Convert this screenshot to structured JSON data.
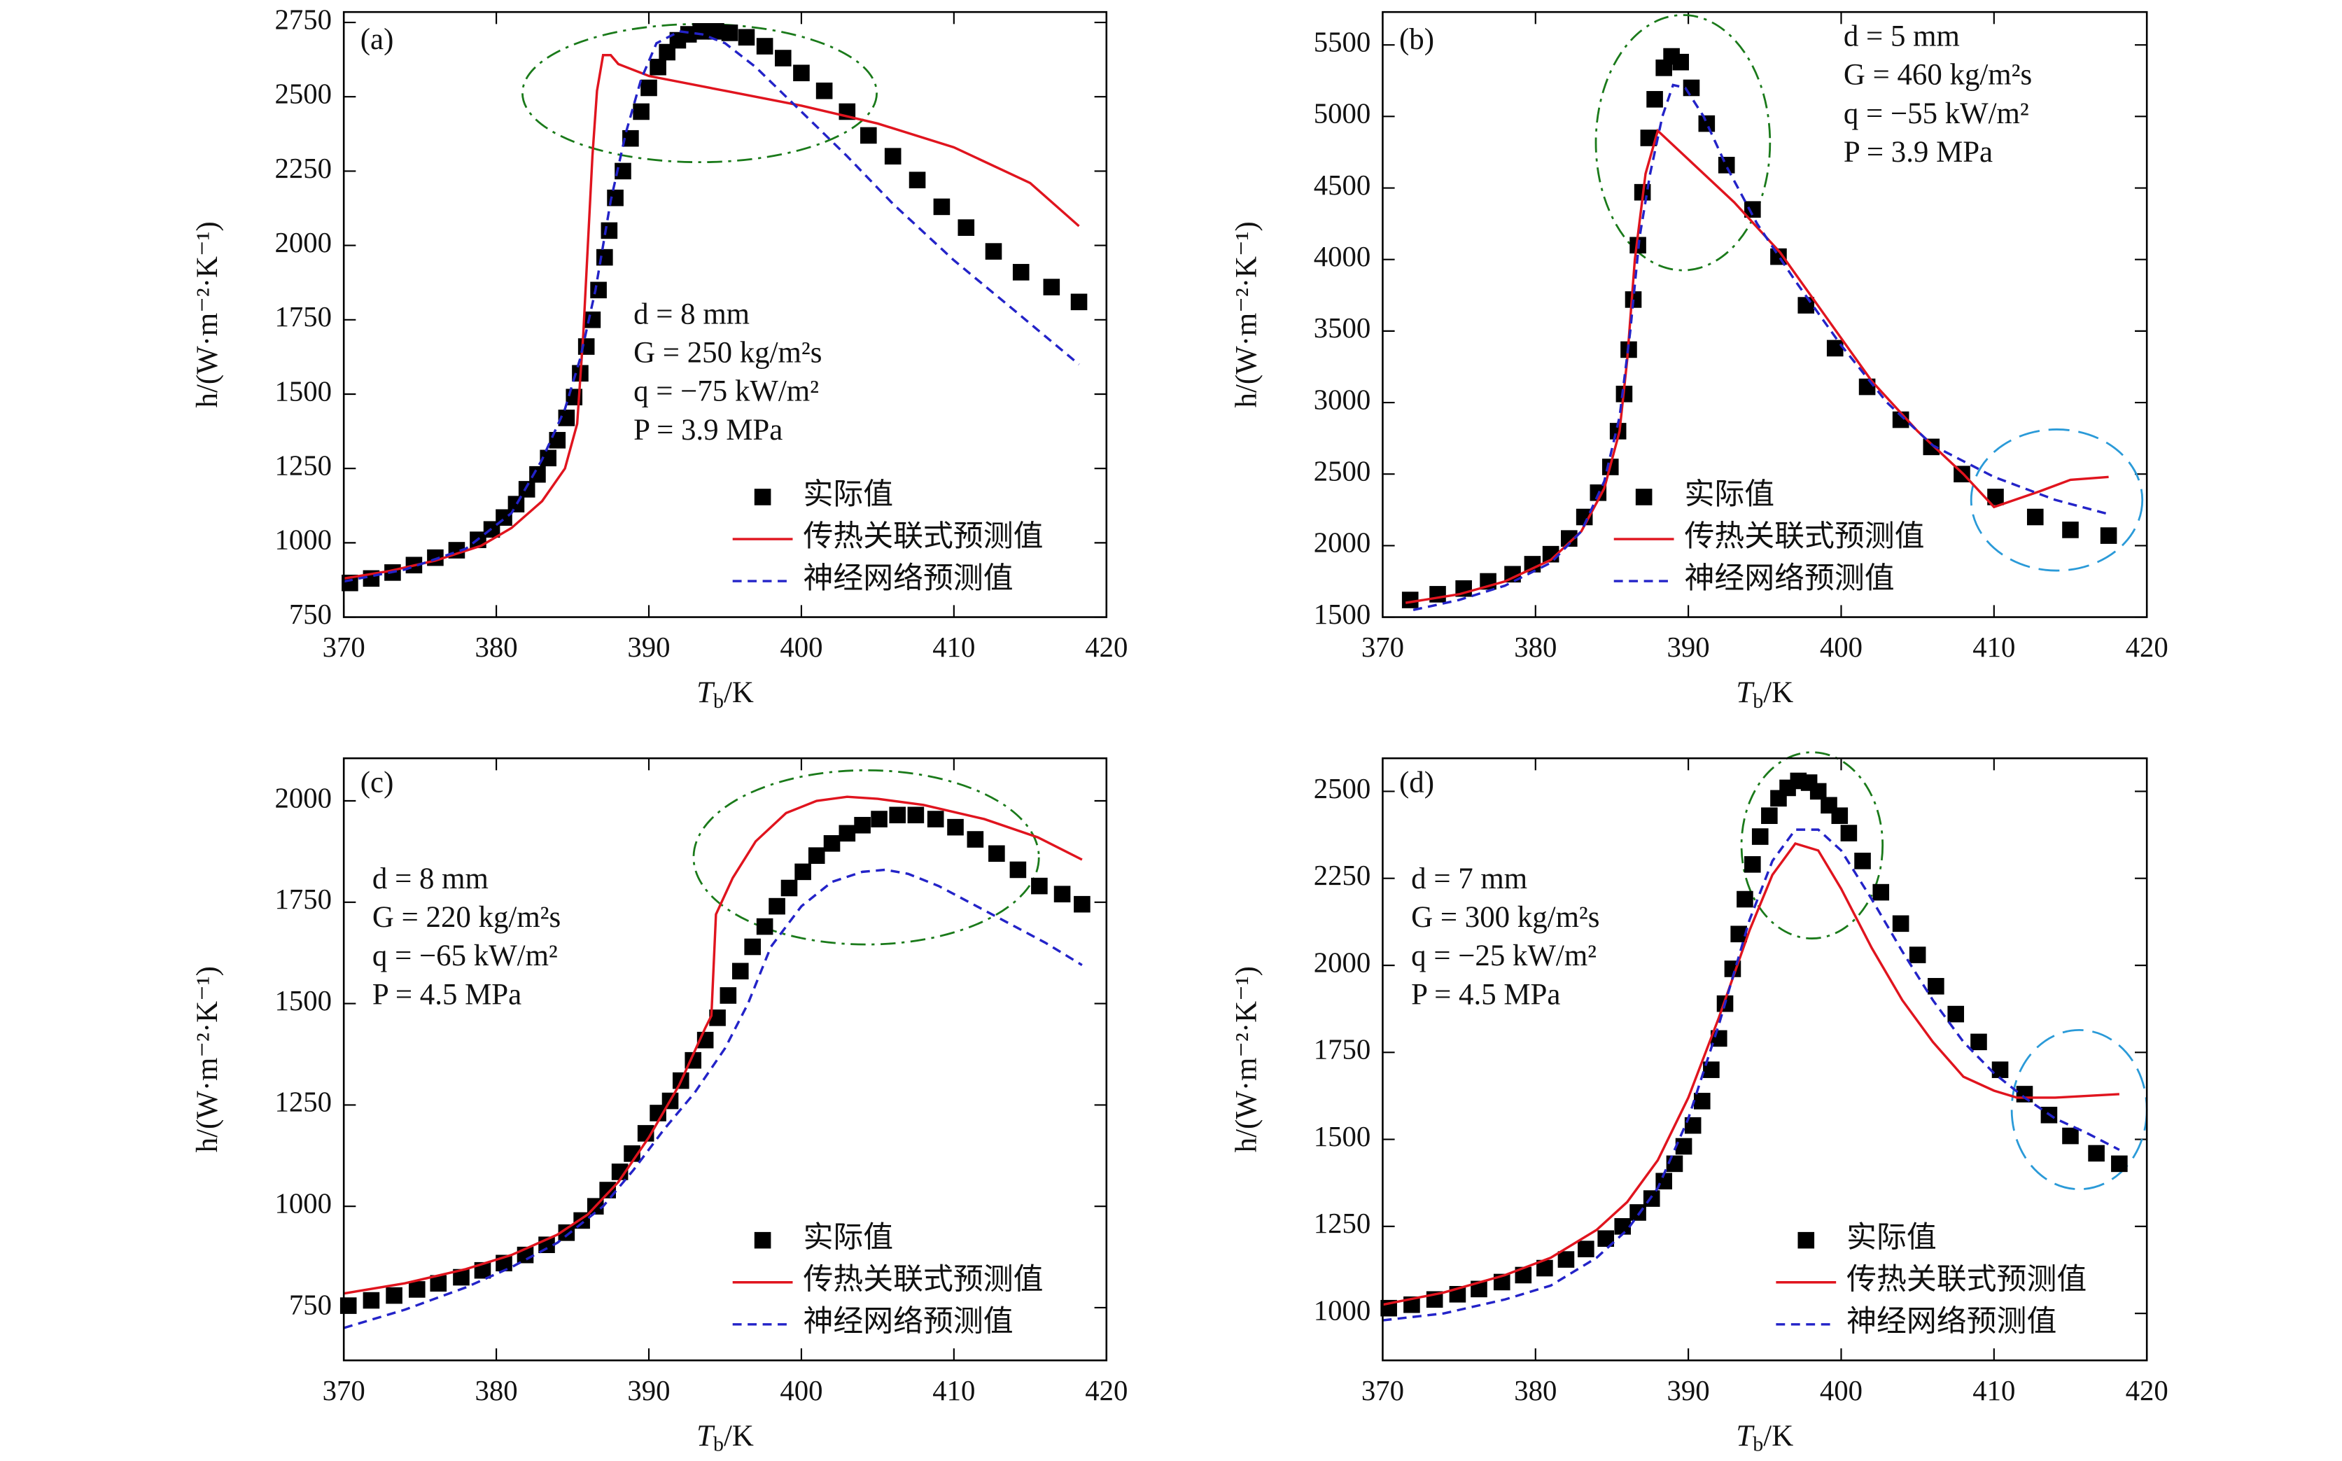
{
  "chart_data": [
    {
      "type": "line",
      "label": "(a)",
      "xlabel": [
        "T",
        "b",
        "/K"
      ],
      "ylabel": "h/(W·m⁻²·K⁻¹)",
      "xlim": [
        370,
        420
      ],
      "xticks": [
        370,
        380,
        390,
        400,
        410,
        420
      ],
      "ylim": [
        750,
        2785
      ],
      "yticks": [
        750,
        1000,
        1250,
        1500,
        1750,
        2000,
        2250,
        2500,
        2750
      ],
      "legend": "lower right",
      "annotations": [
        "d = 8 mm",
        "G = 250 kg/m²s",
        "q = −75 kW/m²",
        "P = 3.9 MPa"
      ],
      "series": [
        {
          "name": "实际值",
          "color": "#000000",
          "style": "marker",
          "x": [
            370.4,
            371.8,
            373.2,
            374.6,
            376,
            377.4,
            378.8,
            379.7,
            380.5,
            381.3,
            382,
            382.7,
            383.4,
            384,
            384.6,
            385.1,
            385.5,
            385.9,
            386.3,
            386.7,
            387.1,
            387.4,
            387.8,
            388.3,
            388.8,
            389.5,
            390,
            390.6,
            391.2,
            391.9,
            392.6,
            393.4,
            394.4,
            395.3,
            396.4,
            397.6,
            398.8,
            400,
            401.5,
            403,
            404.4,
            406,
            407.6,
            409.2,
            410.8,
            412.6,
            414.4,
            416.4,
            418.2
          ],
          "values": [
            865,
            880,
            900,
            925,
            950,
            975,
            1010,
            1045,
            1085,
            1130,
            1180,
            1230,
            1285,
            1345,
            1420,
            1490,
            1570,
            1660,
            1750,
            1850,
            1960,
            2050,
            2160,
            2250,
            2360,
            2450,
            2530,
            2600,
            2650,
            2690,
            2710,
            2720,
            2720,
            2715,
            2700,
            2670,
            2630,
            2580,
            2520,
            2450,
            2370,
            2300,
            2220,
            2130,
            2060,
            1980,
            1910,
            1860,
            1810
          ]
        },
        {
          "name": "传热关联式预测值",
          "color": "#e0141e",
          "style": "solid",
          "x": [
            370,
            373,
            376,
            379,
            381,
            383,
            384.5,
            385.3,
            385.7,
            386,
            386.3,
            386.6,
            387,
            387.5,
            388,
            390,
            395,
            400,
            405,
            410,
            415,
            418.2
          ],
          "values": [
            880,
            905,
            940,
            990,
            1050,
            1140,
            1250,
            1400,
            1700,
            2000,
            2300,
            2520,
            2640,
            2640,
            2610,
            2570,
            2520,
            2470,
            2410,
            2330,
            2210,
            2065
          ]
        },
        {
          "name": "神经网络预测值",
          "color": "#2323c8",
          "style": "dashed",
          "x": [
            370,
            374,
            378,
            381,
            383,
            384.5,
            385.5,
            386.5,
            387.5,
            388.5,
            389.5,
            390.5,
            392,
            393.5,
            395,
            397,
            400,
            403,
            406,
            410,
            414,
            418.2
          ],
          "values": [
            870,
            910,
            980,
            1100,
            1280,
            1450,
            1620,
            1850,
            2150,
            2380,
            2560,
            2680,
            2720,
            2710,
            2680,
            2600,
            2450,
            2300,
            2140,
            1950,
            1780,
            1600
          ]
        }
      ]
    },
    {
      "type": "line",
      "label": "(b)",
      "xlabel": [
        "T",
        "b",
        "/K"
      ],
      "ylabel": "h/(W·m⁻²·K⁻¹)",
      "xlim": [
        370,
        420
      ],
      "xticks": [
        370,
        380,
        390,
        400,
        410,
        420
      ],
      "ylim": [
        1500,
        5730
      ],
      "yticks": [
        1500,
        2000,
        2500,
        3000,
        3500,
        4000,
        4500,
        5000,
        5500
      ],
      "legend": "lower right",
      "annotations": [
        "d = 5 mm",
        "G = 460 kg/m²s",
        "q = −55 kW/m²",
        "P = 3.9 MPa"
      ],
      "series": [
        {
          "name": "实际值",
          "color": "#000000",
          "style": "marker",
          "x": [
            371.8,
            373.6,
            375.3,
            376.9,
            378.5,
            379.8,
            381,
            382.2,
            383.2,
            384.1,
            384.9,
            385.4,
            385.8,
            386.1,
            386.4,
            386.7,
            387,
            387.4,
            387.8,
            388.4,
            388.9,
            389.5,
            390.2,
            391.2,
            392.5,
            394.2,
            395.9,
            397.7,
            399.6,
            401.7,
            403.9,
            405.9,
            407.9,
            410.1,
            412.7,
            415,
            417.5
          ],
          "values": [
            1620,
            1660,
            1700,
            1750,
            1800,
            1870,
            1940,
            2050,
            2200,
            2370,
            2550,
            2800,
            3060,
            3370,
            3720,
            4100,
            4470,
            4850,
            5120,
            5340,
            5420,
            5380,
            5200,
            4950,
            4660,
            4350,
            4020,
            3680,
            3380,
            3110,
            2880,
            2690,
            2500,
            2340,
            2200,
            2110,
            2070
          ]
        },
        {
          "name": "传热关联式预测值",
          "color": "#e0141e",
          "style": "solid",
          "x": [
            371.5,
            375,
            378,
            381,
            383,
            384.5,
            385.5,
            386,
            386.5,
            387.2,
            388,
            390,
            393,
            396,
            399,
            402,
            405,
            408,
            410,
            413,
            415,
            417.5
          ],
          "values": [
            1600,
            1660,
            1750,
            1900,
            2100,
            2400,
            2800,
            3300,
            4000,
            4600,
            4900,
            4700,
            4400,
            4050,
            3600,
            3150,
            2800,
            2500,
            2270,
            2380,
            2460,
            2480
          ]
        },
        {
          "name": "神经网络预测值",
          "color": "#2323c8",
          "style": "dashed",
          "x": [
            372,
            375,
            378,
            381,
            383,
            384.5,
            385.5,
            386.2,
            386.8,
            387.5,
            388.3,
            389,
            389.8,
            391,
            392.5,
            394.5,
            397,
            400,
            403,
            406,
            410,
            414,
            417.5
          ],
          "values": [
            1550,
            1620,
            1720,
            1880,
            2100,
            2450,
            2900,
            3500,
            4150,
            4600,
            5000,
            5220,
            5200,
            5000,
            4650,
            4250,
            3850,
            3400,
            3000,
            2700,
            2480,
            2320,
            2220
          ]
        }
      ]
    },
    {
      "type": "line",
      "label": "(c)",
      "xlabel": [
        "T",
        "b",
        "/K"
      ],
      "ylabel": "h/(W·m⁻²·K⁻¹)",
      "xlim": [
        370,
        420
      ],
      "xticks": [
        370,
        380,
        390,
        400,
        410,
        420
      ],
      "ylim": [
        620,
        2105
      ],
      "yticks": [
        750,
        1000,
        1250,
        1500,
        1750,
        2000
      ],
      "legend": "lower right",
      "annotations": [
        "d = 8 mm",
        "G = 220 kg/m²s",
        "q = −65 kW/m²",
        "P = 4.5 MPa"
      ],
      "series": [
        {
          "name": "实际值",
          "color": "#000000",
          "style": "marker",
          "x": [
            370.3,
            371.8,
            373.3,
            374.8,
            376.2,
            377.7,
            379.1,
            380.5,
            381.9,
            383.3,
            384.6,
            385.6,
            386.5,
            387.3,
            388.1,
            388.9,
            389.8,
            390.6,
            391.4,
            392.1,
            392.9,
            393.7,
            394.5,
            395.2,
            396,
            396.8,
            397.6,
            398.4,
            399.2,
            400.1,
            401,
            402,
            403,
            404,
            405.1,
            406.3,
            407.5,
            408.8,
            410.1,
            411.4,
            412.8,
            414.2,
            415.6,
            417.1,
            418.4
          ],
          "values": [
            755,
            768,
            780,
            795,
            810,
            825,
            842,
            860,
            880,
            905,
            935,
            965,
            1000,
            1040,
            1085,
            1130,
            1180,
            1230,
            1260,
            1310,
            1360,
            1410,
            1465,
            1520,
            1580,
            1640,
            1690,
            1740,
            1785,
            1825,
            1865,
            1895,
            1920,
            1940,
            1955,
            1965,
            1965,
            1955,
            1935,
            1905,
            1870,
            1830,
            1790,
            1770,
            1745
          ]
        },
        {
          "name": "传热关联式预测值",
          "color": "#e0141e",
          "style": "solid",
          "x": [
            370,
            374,
            378,
            381,
            384,
            386,
            388,
            390,
            392,
            393.7,
            394.1,
            394.4,
            395.5,
            397,
            399,
            401,
            403,
            405,
            408,
            412,
            415.5,
            418.4
          ],
          "values": [
            785,
            810,
            845,
            880,
            930,
            980,
            1060,
            1170,
            1300,
            1440,
            1470,
            1720,
            1810,
            1900,
            1970,
            2000,
            2010,
            2005,
            1990,
            1955,
            1910,
            1855
          ]
        },
        {
          "name": "神经网络预测值",
          "color": "#2323c8",
          "style": "dashed",
          "x": [
            370,
            374,
            378,
            381,
            384,
            387,
            389,
            391,
            393,
            395,
            396.5,
            398,
            400,
            402,
            404,
            405.5,
            407,
            409,
            411,
            414,
            416,
            418.4
          ],
          "values": [
            700,
            745,
            800,
            850,
            910,
            1000,
            1090,
            1190,
            1280,
            1390,
            1500,
            1640,
            1740,
            1800,
            1825,
            1830,
            1820,
            1790,
            1750,
            1690,
            1650,
            1595
          ]
        }
      ]
    },
    {
      "type": "line",
      "label": "(d)",
      "xlabel": [
        "T",
        "b",
        "/K"
      ],
      "ylabel": "h/(W·m⁻²·K⁻¹)",
      "xlim": [
        370,
        420
      ],
      "xticks": [
        370,
        380,
        390,
        400,
        410,
        420
      ],
      "ylim": [
        865,
        2595
      ],
      "yticks": [
        1000,
        1250,
        1500,
        1750,
        2000,
        2250,
        2500
      ],
      "legend": "lower right",
      "annotations": [
        "d = 7 mm",
        "G = 300 kg/m²s",
        "q = −25 kW/m²",
        "P = 4.5 MPa"
      ],
      "series": [
        {
          "name": "实际值",
          "color": "#000000",
          "style": "marker",
          "x": [
            370.4,
            371.9,
            373.4,
            374.9,
            376.3,
            377.8,
            379.2,
            380.6,
            382,
            383.3,
            384.6,
            385.7,
            386.7,
            387.6,
            388.4,
            389.1,
            389.7,
            390.3,
            390.9,
            391.5,
            392,
            392.4,
            392.9,
            393.3,
            393.7,
            394.2,
            394.7,
            395.3,
            395.9,
            396.5,
            397.2,
            397.9,
            398.5,
            399.2,
            399.9,
            400.5,
            401.4,
            402.6,
            403.9,
            405,
            406.2,
            407.5,
            409,
            410.4,
            412,
            413.6,
            415,
            416.7,
            418.2
          ],
          "values": [
            1015,
            1025,
            1040,
            1055,
            1070,
            1090,
            1110,
            1130,
            1155,
            1185,
            1215,
            1250,
            1290,
            1330,
            1380,
            1430,
            1480,
            1540,
            1610,
            1700,
            1790,
            1890,
            1990,
            2090,
            2190,
            2290,
            2370,
            2430,
            2480,
            2510,
            2530,
            2525,
            2500,
            2460,
            2430,
            2380,
            2300,
            2210,
            2120,
            2030,
            1940,
            1860,
            1780,
            1700,
            1630,
            1570,
            1510,
            1460,
            1430
          ]
        },
        {
          "name": "传热关联式预测值",
          "color": "#e0141e",
          "style": "solid",
          "x": [
            370,
            374,
            378,
            381,
            384,
            386,
            388,
            390,
            392,
            394,
            395.5,
            397,
            398.5,
            400,
            402,
            404,
            406,
            408,
            410,
            411.5,
            414,
            418.2
          ],
          "values": [
            1025,
            1060,
            1110,
            1160,
            1240,
            1320,
            1440,
            1620,
            1850,
            2100,
            2260,
            2350,
            2330,
            2220,
            2050,
            1900,
            1780,
            1680,
            1640,
            1620,
            1620,
            1630
          ]
        },
        {
          "name": "神经网络预测值",
          "color": "#2323c8",
          "style": "dashed",
          "x": [
            370,
            374,
            378,
            381,
            384,
            386,
            388,
            390,
            392,
            394,
            395.5,
            397,
            398.5,
            400,
            402,
            404,
            406,
            408,
            410,
            412,
            414,
            416,
            418.2
          ],
          "values": [
            980,
            1000,
            1040,
            1080,
            1160,
            1240,
            1360,
            1560,
            1830,
            2130,
            2300,
            2390,
            2390,
            2330,
            2190,
            2040,
            1900,
            1780,
            1690,
            1620,
            1560,
            1520,
            1470
          ]
        }
      ]
    }
  ]
}
